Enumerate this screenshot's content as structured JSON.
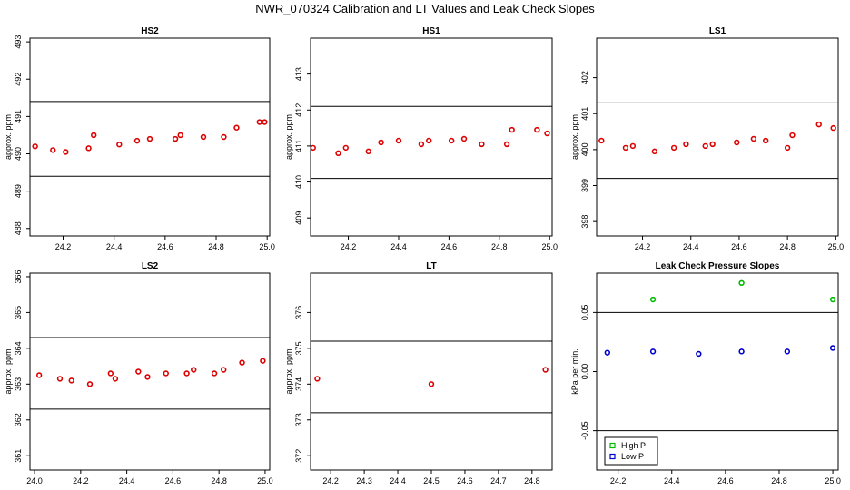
{
  "figure": {
    "title": "NWR_070324  Calibration and LT Values and Leak Check Slopes"
  },
  "chart_data": [
    {
      "type": "scatter",
      "title": "HS2",
      "ylabel": "approx. ppm",
      "xlim": [
        24.07,
        25.01
      ],
      "ylim": [
        487.8,
        493.1
      ],
      "xticks": [
        24.2,
        24.4,
        24.6,
        24.8,
        25.0
      ],
      "xtick_labels": [
        "24.2",
        "24.4",
        "24.6",
        "24.8",
        "25.0"
      ],
      "yticks": [
        488,
        489,
        490,
        491,
        492,
        493
      ],
      "hlines": [
        491.4,
        489.4
      ],
      "series": [
        {
          "color": "#dd0000",
          "x": [
            24.09,
            24.16,
            24.21,
            24.3,
            24.32,
            24.42,
            24.49,
            24.54,
            24.64,
            24.66,
            24.75,
            24.83,
            24.88,
            24.97,
            24.99
          ],
          "y": [
            490.2,
            490.1,
            490.05,
            490.15,
            490.5,
            490.25,
            490.35,
            490.4,
            490.4,
            490.5,
            490.45,
            490.45,
            490.7,
            490.85,
            490.85
          ]
        }
      ]
    },
    {
      "type": "scatter",
      "title": "HS1",
      "ylabel": "approx. ppm",
      "xlim": [
        24.05,
        25.01
      ],
      "ylim": [
        408.5,
        414.0
      ],
      "xticks": [
        24.2,
        24.4,
        24.6,
        24.8,
        25.0
      ],
      "xtick_labels": [
        "24.2",
        "24.4",
        "24.6",
        "24.8",
        "25.0"
      ],
      "yticks": [
        409,
        410,
        411,
        412,
        413
      ],
      "hlines": [
        412.1,
        410.1
      ],
      "series": [
        {
          "color": "#dd0000",
          "x": [
            24.06,
            24.16,
            24.19,
            24.28,
            24.33,
            24.4,
            24.49,
            24.52,
            24.61,
            24.66,
            24.73,
            24.83,
            24.85,
            24.95,
            24.99
          ],
          "y": [
            410.95,
            410.8,
            410.95,
            410.85,
            411.1,
            411.15,
            411.05,
            411.15,
            411.15,
            411.2,
            411.05,
            411.05,
            411.45,
            411.45,
            411.35
          ]
        }
      ]
    },
    {
      "type": "scatter",
      "title": "LS1",
      "ylabel": "approx. ppm",
      "xlim": [
        24.01,
        25.01
      ],
      "ylim": [
        397.6,
        403.1
      ],
      "xticks": [
        24.2,
        24.4,
        24.6,
        24.8,
        25.0
      ],
      "xtick_labels": [
        "24.2",
        "24.4",
        "24.6",
        "24.8",
        "25.0"
      ],
      "yticks": [
        398,
        399,
        400,
        401,
        402
      ],
      "hlines": [
        401.3,
        399.2
      ],
      "series": [
        {
          "color": "#dd0000",
          "x": [
            24.03,
            24.13,
            24.16,
            24.25,
            24.33,
            24.38,
            24.46,
            24.49,
            24.59,
            24.66,
            24.71,
            24.8,
            24.82,
            24.93,
            24.99
          ],
          "y": [
            400.25,
            400.05,
            400.1,
            399.95,
            400.05,
            400.15,
            400.1,
            400.15,
            400.2,
            400.3,
            400.25,
            400.05,
            400.4,
            400.7,
            400.6
          ]
        }
      ]
    },
    {
      "type": "scatter",
      "title": "LS2",
      "ylabel": "approx. ppm",
      "xlim": [
        23.98,
        25.02
      ],
      "ylim": [
        360.6,
        366.1
      ],
      "xticks": [
        24.0,
        24.2,
        24.4,
        24.6,
        24.8,
        25.0
      ],
      "xtick_labels": [
        "24.0",
        "24.2",
        "24.4",
        "24.6",
        "24.8",
        "25.0"
      ],
      "yticks": [
        361,
        362,
        363,
        364,
        365,
        366
      ],
      "hlines": [
        364.3,
        362.3
      ],
      "series": [
        {
          "color": "#dd0000",
          "x": [
            24.02,
            24.11,
            24.16,
            24.24,
            24.33,
            24.35,
            24.45,
            24.49,
            24.57,
            24.66,
            24.69,
            24.78,
            24.82,
            24.9,
            24.99
          ],
          "y": [
            363.25,
            363.15,
            363.1,
            363.0,
            363.3,
            363.15,
            363.35,
            363.2,
            363.3,
            363.3,
            363.4,
            363.3,
            363.4,
            363.6,
            363.65
          ]
        }
      ]
    },
    {
      "type": "scatter",
      "title": "LT",
      "ylabel": "approx. ppm",
      "xlim": [
        24.14,
        24.86
      ],
      "ylim": [
        371.6,
        377.1
      ],
      "xticks": [
        24.2,
        24.3,
        24.4,
        24.5,
        24.6,
        24.7,
        24.8
      ],
      "xtick_labels": [
        "24.2",
        "24.3",
        "24.4",
        "24.5",
        "24.6",
        "24.7",
        "24.8"
      ],
      "yticks": [
        372,
        373,
        374,
        375,
        376
      ],
      "hlines": [
        375.2,
        373.2
      ],
      "series": [
        {
          "color": "#dd0000",
          "x": [
            24.16,
            24.5,
            24.84
          ],
          "y": [
            374.15,
            374.0,
            374.4
          ]
        }
      ]
    },
    {
      "type": "scatter",
      "title": "Leak Check Pressure Slopes",
      "ylabel": "kPa per min.",
      "xlim": [
        24.12,
        25.02
      ],
      "ylim": [
        -0.0833,
        0.0833
      ],
      "xticks": [
        24.2,
        24.4,
        24.6,
        24.8,
        25.0
      ],
      "xtick_labels": [
        "24.2",
        "24.4",
        "24.6",
        "24.8",
        "25.0"
      ],
      "yticks": [
        -0.05,
        0.0,
        0.05
      ],
      "ytick_labels": [
        "-0.05",
        "0.00",
        "0.05"
      ],
      "hlines": [
        0.05,
        -0.05
      ],
      "series": [
        {
          "name": "High P",
          "color": "#00bb00",
          "marker": "circle",
          "x": [
            24.33,
            24.66,
            25.0
          ],
          "y": [
            0.061,
            0.075,
            0.061
          ]
        },
        {
          "name": "Low P",
          "color": "#0000cc",
          "marker": "circle",
          "x": [
            24.16,
            24.33,
            24.5,
            24.66,
            24.83,
            25.0
          ],
          "y": [
            0.016,
            0.017,
            0.015,
            0.017,
            0.017,
            0.02
          ]
        }
      ],
      "legend": {
        "placement": "bottom-left",
        "marker": "square"
      }
    }
  ]
}
